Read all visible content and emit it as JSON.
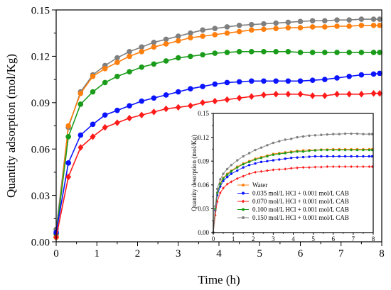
{
  "chart_data": [
    {
      "id": "main",
      "type": "line",
      "xlabel": "Time (h)",
      "ylabel": "Quantity adsorption (mol/Kg)",
      "xlim": [
        0,
        8
      ],
      "ylim": [
        0,
        0.15
      ],
      "xticks": [
        0,
        1,
        2,
        3,
        4,
        5,
        6,
        7,
        8
      ],
      "yticks": [
        "0.00",
        "0.03",
        "0.06",
        "0.09",
        "0.12",
        "0.15"
      ],
      "series": [
        {
          "color": "#7f7f7f",
          "marker": "circle",
          "x": [
            0,
            0.3,
            0.6,
            0.9,
            1.2,
            1.5,
            1.8,
            2.1,
            2.4,
            2.7,
            3.0,
            3.3,
            3.6,
            3.9,
            4.2,
            4.5,
            4.8,
            5.1,
            5.4,
            5.7,
            6.0,
            6.3,
            6.6,
            6.9,
            7.2,
            7.5,
            7.8,
            7.95
          ],
          "y": [
            0.008,
            0.074,
            0.097,
            0.108,
            0.114,
            0.119,
            0.123,
            0.126,
            0.129,
            0.131,
            0.133,
            0.135,
            0.137,
            0.138,
            0.139,
            0.14,
            0.1405,
            0.141,
            0.1415,
            0.142,
            0.1425,
            0.143,
            0.143,
            0.1435,
            0.1435,
            0.144,
            0.144,
            0.144
          ]
        },
        {
          "color": "#ff7f0e",
          "marker": "circle",
          "x": [
            0,
            0.3,
            0.6,
            0.9,
            1.2,
            1.5,
            1.8,
            2.1,
            2.4,
            2.7,
            3.0,
            3.3,
            3.6,
            3.9,
            4.2,
            4.5,
            4.8,
            5.1,
            5.4,
            5.7,
            6.0,
            6.3,
            6.6,
            6.9,
            7.2,
            7.5,
            7.8,
            7.95
          ],
          "y": [
            0.003,
            0.075,
            0.096,
            0.107,
            0.112,
            0.116,
            0.12,
            0.123,
            0.126,
            0.128,
            0.13,
            0.132,
            0.133,
            0.134,
            0.135,
            0.136,
            0.137,
            0.1375,
            0.138,
            0.1385,
            0.1385,
            0.139,
            0.139,
            0.1395,
            0.1395,
            0.14,
            0.14,
            0.14
          ]
        },
        {
          "color": "#1a9c1a",
          "marker": "circle",
          "x": [
            0,
            0.3,
            0.6,
            0.9,
            1.2,
            1.5,
            1.8,
            2.1,
            2.4,
            2.7,
            3.0,
            3.3,
            3.6,
            3.9,
            4.2,
            4.5,
            4.8,
            5.1,
            5.4,
            5.7,
            6.0,
            6.3,
            6.6,
            6.9,
            7.2,
            7.5,
            7.8,
            7.95
          ],
          "y": [
            0.005,
            0.068,
            0.089,
            0.097,
            0.103,
            0.107,
            0.11,
            0.113,
            0.115,
            0.117,
            0.119,
            0.12,
            0.121,
            0.122,
            0.1225,
            0.123,
            0.123,
            0.123,
            0.123,
            0.123,
            0.1225,
            0.1225,
            0.1225,
            0.1225,
            0.1225,
            0.1225,
            0.1225,
            0.1225
          ]
        },
        {
          "color": "#0a14ff",
          "marker": "circle",
          "x": [
            0,
            0.3,
            0.6,
            0.9,
            1.2,
            1.5,
            1.8,
            2.1,
            2.4,
            2.7,
            3.0,
            3.3,
            3.6,
            3.9,
            4.2,
            4.5,
            4.8,
            5.1,
            5.4,
            5.7,
            6.0,
            6.3,
            6.6,
            6.9,
            7.2,
            7.5,
            7.8,
            7.95
          ],
          "y": [
            0.006,
            0.051,
            0.069,
            0.076,
            0.082,
            0.085,
            0.088,
            0.091,
            0.093,
            0.095,
            0.097,
            0.099,
            0.1005,
            0.102,
            0.103,
            0.1035,
            0.104,
            0.104,
            0.104,
            0.104,
            0.104,
            0.1045,
            0.105,
            0.106,
            0.107,
            0.108,
            0.1085,
            0.109
          ]
        },
        {
          "color": "#ff1a1a",
          "marker": "diamond",
          "x": [
            0,
            0.3,
            0.6,
            0.9,
            1.2,
            1.5,
            1.8,
            2.1,
            2.4,
            2.7,
            3.0,
            3.3,
            3.6,
            3.9,
            4.2,
            4.5,
            4.8,
            5.1,
            5.4,
            5.7,
            6.0,
            6.3,
            6.6,
            6.9,
            7.2,
            7.5,
            7.8,
            7.95
          ],
          "y": [
            0.003,
            0.042,
            0.061,
            0.068,
            0.074,
            0.077,
            0.08,
            0.082,
            0.084,
            0.086,
            0.087,
            0.088,
            0.09,
            0.091,
            0.092,
            0.093,
            0.094,
            0.095,
            0.0955,
            0.0955,
            0.0955,
            0.0945,
            0.0945,
            0.0955,
            0.0955,
            0.0955,
            0.096,
            0.096
          ]
        }
      ]
    },
    {
      "id": "inset",
      "type": "line",
      "xlabel": "",
      "ylabel": "Quantity desorption (mol/Kg)",
      "xlim": [
        0,
        8
      ],
      "ylim": [
        0,
        0.15
      ],
      "xticks": [
        0,
        1,
        2,
        3,
        4,
        5,
        6,
        7,
        8
      ],
      "yticks": [
        "0.00",
        "0.03",
        "0.06",
        "0.09",
        "0.12",
        "0.15"
      ],
      "legend": "bottom-center",
      "series": [
        {
          "name": "Water",
          "color": "#ff7f0e",
          "marker": "circle",
          "x": [
            0,
            0.1,
            0.2,
            0.35,
            0.5,
            0.7,
            0.9,
            1.2,
            1.5,
            1.8,
            2.1,
            2.4,
            2.7,
            3.0,
            3.3,
            3.6,
            3.9,
            4.2,
            4.5,
            4.8,
            5.1,
            5.4,
            5.7,
            6.0,
            6.3,
            6.6,
            6.9,
            7.2,
            7.5,
            7.8,
            7.95
          ],
          "y": [
            0,
            0.03,
            0.05,
            0.062,
            0.069,
            0.074,
            0.078,
            0.083,
            0.087,
            0.09,
            0.093,
            0.095,
            0.097,
            0.099,
            0.1,
            0.101,
            0.102,
            0.103,
            0.1035,
            0.104,
            0.104,
            0.1045,
            0.1045,
            0.105,
            0.105,
            0.105,
            0.105,
            0.105,
            0.105,
            0.105,
            0.105
          ]
        },
        {
          "name": "0.035 mol/L HCl + 0.001 mol/L CAB",
          "color": "#0a14ff",
          "marker": "circle",
          "x": [
            0,
            0.1,
            0.2,
            0.35,
            0.5,
            0.7,
            0.9,
            1.2,
            1.5,
            1.8,
            2.1,
            2.4,
            2.7,
            3.0,
            3.3,
            3.6,
            3.9,
            4.2,
            4.5,
            4.8,
            5.1,
            5.4,
            5.7,
            6.0,
            6.3,
            6.6,
            6.9,
            7.2,
            7.5,
            7.8,
            7.95
          ],
          "y": [
            0,
            0.028,
            0.047,
            0.058,
            0.065,
            0.07,
            0.074,
            0.078,
            0.082,
            0.085,
            0.087,
            0.089,
            0.09,
            0.091,
            0.092,
            0.093,
            0.094,
            0.0945,
            0.095,
            0.0955,
            0.096,
            0.096,
            0.096,
            0.096,
            0.096,
            0.096,
            0.096,
            0.096,
            0.096,
            0.096,
            0.096
          ]
        },
        {
          "name": "0.070 mol/L HCl + 0.001 mol/L CAB",
          "color": "#ff1a1a",
          "marker": "diamond",
          "x": [
            0,
            0.1,
            0.2,
            0.35,
            0.5,
            0.7,
            0.9,
            1.2,
            1.5,
            1.8,
            2.1,
            2.4,
            2.7,
            3.0,
            3.3,
            3.6,
            3.9,
            4.2,
            4.5,
            4.8,
            5.1,
            5.4,
            5.7,
            6.0,
            6.3,
            6.6,
            6.9,
            7.2,
            7.5,
            7.8,
            7.95
          ],
          "y": [
            0,
            0.022,
            0.039,
            0.05,
            0.056,
            0.061,
            0.064,
            0.068,
            0.071,
            0.074,
            0.076,
            0.077,
            0.078,
            0.079,
            0.0795,
            0.08,
            0.081,
            0.0815,
            0.082,
            0.082,
            0.0825,
            0.0825,
            0.083,
            0.083,
            0.083,
            0.083,
            0.083,
            0.083,
            0.083,
            0.083,
            0.083
          ]
        },
        {
          "name": "0.100 mol/L HCl + 0.001 mol/L CAB",
          "color": "#1a9c1a",
          "marker": "circle",
          "x": [
            0,
            0.1,
            0.2,
            0.35,
            0.5,
            0.7,
            0.9,
            1.2,
            1.5,
            1.8,
            2.1,
            2.4,
            2.7,
            3.0,
            3.3,
            3.6,
            3.9,
            4.2,
            4.5,
            4.8,
            5.1,
            5.4,
            5.7,
            6.0,
            6.3,
            6.6,
            6.9,
            7.2,
            7.5,
            7.8,
            7.95
          ],
          "y": [
            0,
            0.03,
            0.05,
            0.061,
            0.068,
            0.073,
            0.077,
            0.082,
            0.086,
            0.089,
            0.092,
            0.094,
            0.096,
            0.098,
            0.099,
            0.1,
            0.101,
            0.102,
            0.102,
            0.103,
            0.1035,
            0.104,
            0.104,
            0.104,
            0.104,
            0.104,
            0.104,
            0.104,
            0.104,
            0.104,
            0.104
          ]
        },
        {
          "name": "0.150 mol/L HCl + 0.001 mol/L CAB",
          "color": "#7f7f7f",
          "marker": "circle",
          "x": [
            0,
            0.1,
            0.2,
            0.35,
            0.5,
            0.7,
            0.9,
            1.2,
            1.5,
            1.8,
            2.1,
            2.4,
            2.7,
            3.0,
            3.3,
            3.6,
            3.9,
            4.2,
            4.5,
            4.8,
            5.1,
            5.4,
            5.7,
            6.0,
            6.3,
            6.6,
            6.9,
            7.2,
            7.5,
            7.8,
            7.95
          ],
          "y": [
            0,
            0.033,
            0.055,
            0.067,
            0.074,
            0.08,
            0.085,
            0.091,
            0.096,
            0.1,
            0.104,
            0.107,
            0.11,
            0.113,
            0.115,
            0.117,
            0.118,
            0.12,
            0.121,
            0.122,
            0.1225,
            0.123,
            0.1235,
            0.124,
            0.124,
            0.1245,
            0.1245,
            0.1245,
            0.124,
            0.124,
            0.124
          ]
        }
      ]
    }
  ]
}
